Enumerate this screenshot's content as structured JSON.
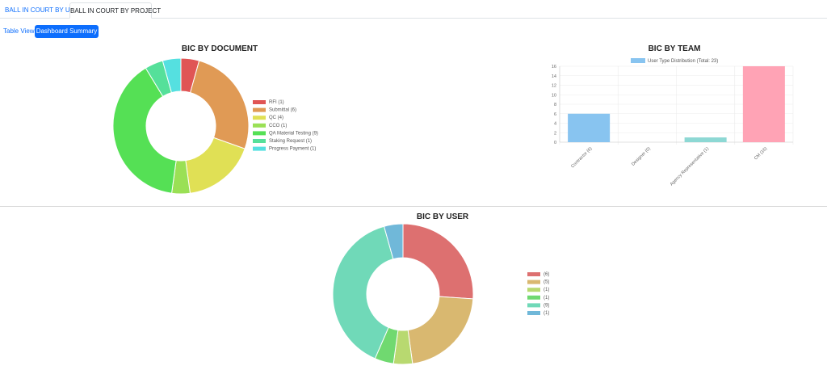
{
  "tabs": {
    "user": "BALL IN COURT BY USER",
    "project": "BALL IN COURT BY PROJECT"
  },
  "toolbar": {
    "table_view": "Table View",
    "dashboard_summary": "Dashboard Summary"
  },
  "colors": {
    "accent": "#0d6efd"
  },
  "chart_data": [
    {
      "type": "pie",
      "donut": true,
      "title": "BIC BY DOCUMENT",
      "legend_position": "right",
      "series": [
        {
          "name": "RFI (1)",
          "value": 1,
          "color": "#e05555"
        },
        {
          "name": "Submittal (6)",
          "value": 6,
          "color": "#e09a55"
        },
        {
          "name": "QC (4)",
          "value": 4,
          "color": "#e0e055"
        },
        {
          "name": "CCO (1)",
          "value": 1,
          "color": "#9ae055"
        },
        {
          "name": "QA Material Testing (9)",
          "value": 9,
          "color": "#55e055"
        },
        {
          "name": "Staking Request (1)",
          "value": 1,
          "color": "#55e09a"
        },
        {
          "name": "Progress Payment (1)",
          "value": 1,
          "color": "#55e0e0"
        }
      ]
    },
    {
      "type": "bar",
      "title": "BIC BY TEAM",
      "legend": "User Type Distribution (Total: 23)",
      "legend_color": "#88c4f0",
      "categories": [
        "Contractor (6)",
        "Designer (0)",
        "Agency Representative (1)",
        "CM (16)"
      ],
      "values": [
        6,
        0,
        1,
        16
      ],
      "colors": [
        "#88c4f0",
        "#f3b37a",
        "#8dd8d4",
        "#ffa3b5"
      ],
      "ylim": [
        0,
        16
      ],
      "yticks": [
        0,
        2,
        4,
        6,
        8,
        10,
        12,
        14,
        16
      ],
      "grid": true
    },
    {
      "type": "pie",
      "donut": true,
      "title": "BIC BY USER",
      "legend_position": "right",
      "series": [
        {
          "name": "(6)",
          "value": 6,
          "color": "#dd7070"
        },
        {
          "name": "(5)",
          "value": 5,
          "color": "#d9b870"
        },
        {
          "name": "(1)",
          "value": 1,
          "color": "#b8d970"
        },
        {
          "name": "(1)",
          "value": 1,
          "color": "#70d970"
        },
        {
          "name": "(9)",
          "value": 9,
          "color": "#70d9b8"
        },
        {
          "name": "(1)",
          "value": 1,
          "color": "#70b8d9"
        }
      ]
    }
  ]
}
